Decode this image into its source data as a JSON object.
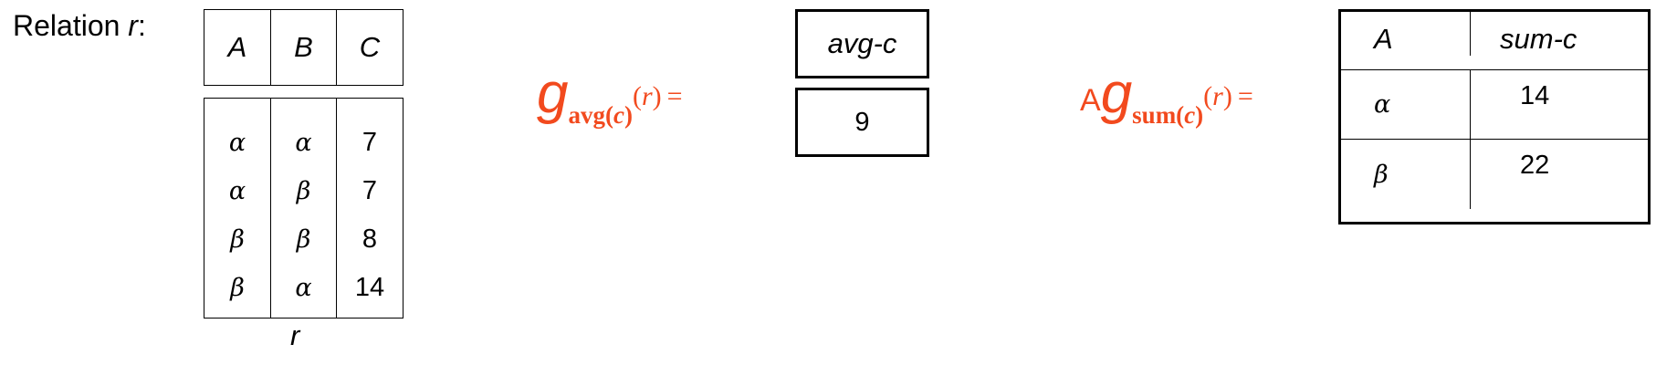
{
  "relation_label": {
    "prefix": "Relation ",
    "name": "r",
    "suffix": ":"
  },
  "relation_r": {
    "headers": [
      "A",
      "B",
      "C"
    ],
    "columns": [
      [
        "α",
        "α",
        "β",
        "β"
      ],
      [
        "α",
        "β",
        "β",
        "α"
      ],
      [
        "7",
        "7",
        "8",
        "14"
      ]
    ],
    "caption": "r"
  },
  "formula_avg": {
    "g": "g",
    "subscript_pre": "avg(",
    "subscript_var": "c",
    "subscript_post": ")",
    "arg_open": "(",
    "arg_var": "r",
    "arg_close": ")",
    "equals": "="
  },
  "avg_result": {
    "header": "avg-c",
    "value": "9"
  },
  "formula_sum": {
    "group_attr": "A",
    "g": "g",
    "subscript_pre": "sum(",
    "subscript_var": "c",
    "subscript_post": ")",
    "arg_open": "(",
    "arg_var": "r",
    "arg_close": ")",
    "equals": "="
  },
  "sum_result": {
    "headers": [
      "A",
      "sum-c"
    ],
    "rows": [
      [
        "α",
        "14"
      ],
      [
        "β",
        "22"
      ]
    ]
  },
  "colors": {
    "formula": "#f24a1e",
    "border": "#000000"
  }
}
